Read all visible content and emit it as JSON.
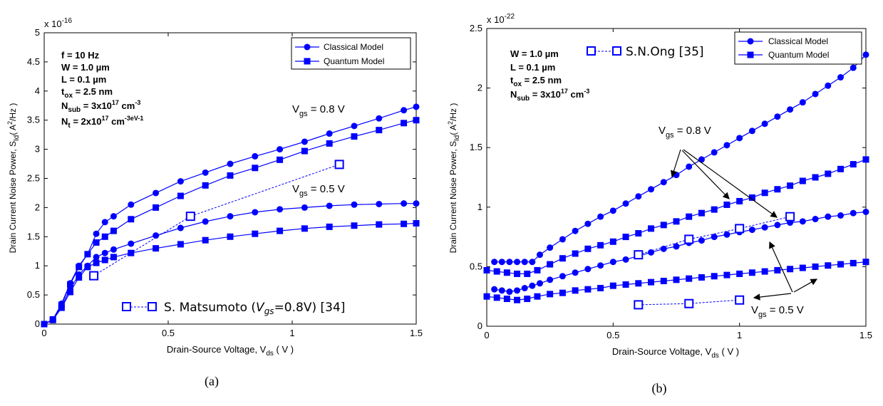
{
  "series_color": "#0000ff",
  "chart_data": [
    {
      "type": "line",
      "caption": "(a)",
      "xlabel": "Drain-Source Voltage, V",
      "xlabel_sub": "ds",
      "xlabel_unit": " ( V )",
      "ylabel": "Drain Current Noise Power, S",
      "ylabel_sub": "Id",
      "ylabel_unit": "( A",
      "ylabel_unit_sup": "2",
      "ylabel_unit_end": "/Hz )",
      "xlim": [
        0,
        1.5
      ],
      "ylim": [
        0,
        5
      ],
      "xticks": [
        "0",
        "0.5",
        "1",
        "1.5"
      ],
      "yticks": [
        "0",
        "0.5",
        "1",
        "1.5",
        "2",
        "2.5",
        "3",
        "3.5",
        "4",
        "4.5",
        "5"
      ],
      "multiplier": "x 10",
      "multiplier_exp": "-16",
      "legend": [
        "Classical Model",
        "Quantum Model"
      ],
      "params": [
        {
          "main": "f = 10 Hz",
          "sub": "",
          "rest": "",
          "sup": "",
          "tail": "",
          "sup2": "",
          "tail2": ""
        },
        {
          "main": "W = 1.0 µm",
          "sub": "",
          "rest": "",
          "sup": "",
          "tail": "",
          "sup2": "",
          "tail2": ""
        },
        {
          "main": "L  =  0.1 µm",
          "sub": "",
          "rest": "",
          "sup": "",
          "tail": "",
          "sup2": "",
          "tail2": ""
        },
        {
          "main": "t",
          "sub": "ox",
          "rest": " = 2.5 nm",
          "sup": "",
          "tail": "",
          "sup2": "",
          "tail2": ""
        },
        {
          "main": "N",
          "sub": "sub",
          "rest": " = 3x10",
          "sup": "17",
          "tail": " cm",
          "sup2": "-3",
          "tail2": ""
        },
        {
          "main": "N",
          "sub": "t",
          "rest": " = 2x10",
          "sup": "17",
          "tail": " cm",
          "sup2": "-3",
          "tail2": "eV-1"
        }
      ],
      "annotations": [
        {
          "main": "V",
          "sub": "gs",
          "rest": " = 0.8 V"
        },
        {
          "main": "V",
          "sub": "gs",
          "rest": " = 0.5 V"
        }
      ],
      "reference_label": "S. Matsumoto (",
      "reference_italic": "V",
      "reference_italic_sub": "gs",
      "reference_tail": "=0.8V) [34]",
      "series": [
        {
          "name": "Classical Model",
          "marker": "circle",
          "x": [
            0,
            0.035,
            0.07,
            0.105,
            0.14,
            0.175,
            0.21,
            0.245,
            0.28,
            0.35,
            0.45,
            0.55,
            0.65,
            0.75,
            0.85,
            0.95,
            1.05,
            1.15,
            1.25,
            1.35,
            1.45,
            1.5
          ],
          "y": [
            0,
            0.08,
            0.35,
            0.7,
            1.0,
            1.2,
            1.55,
            1.75,
            1.85,
            2.05,
            2.25,
            2.45,
            2.6,
            2.75,
            2.88,
            3.0,
            3.13,
            3.27,
            3.4,
            3.53,
            3.67,
            3.73
          ]
        },
        {
          "name": "Quantum Model",
          "marker": "square",
          "x": [
            0,
            0.035,
            0.07,
            0.105,
            0.14,
            0.175,
            0.21,
            0.245,
            0.28,
            0.35,
            0.45,
            0.55,
            0.65,
            0.75,
            0.85,
            0.95,
            1.05,
            1.15,
            1.25,
            1.35,
            1.45,
            1.5
          ],
          "y": [
            0,
            0.08,
            0.33,
            0.68,
            0.98,
            1.2,
            1.4,
            1.5,
            1.6,
            1.8,
            2.0,
            2.2,
            2.38,
            2.55,
            2.68,
            2.82,
            2.97,
            3.1,
            3.22,
            3.33,
            3.45,
            3.5
          ]
        },
        {
          "name": "Classical Model",
          "marker": "circle",
          "x": [
            0,
            0.035,
            0.07,
            0.105,
            0.14,
            0.175,
            0.21,
            0.245,
            0.28,
            0.35,
            0.45,
            0.55,
            0.65,
            0.75,
            0.85,
            0.95,
            1.05,
            1.15,
            1.25,
            1.35,
            1.45,
            1.5
          ],
          "y": [
            0,
            0.07,
            0.3,
            0.6,
            0.85,
            1.0,
            1.15,
            1.22,
            1.28,
            1.38,
            1.52,
            1.65,
            1.76,
            1.85,
            1.92,
            1.97,
            2.0,
            2.03,
            2.05,
            2.06,
            2.07,
            2.07
          ]
        },
        {
          "name": "Quantum Model",
          "marker": "square",
          "x": [
            0,
            0.035,
            0.07,
            0.105,
            0.14,
            0.175,
            0.21,
            0.245,
            0.28,
            0.35,
            0.45,
            0.55,
            0.65,
            0.75,
            0.85,
            0.95,
            1.05,
            1.15,
            1.25,
            1.35,
            1.45,
            1.5
          ],
          "y": [
            0,
            0.07,
            0.28,
            0.55,
            0.8,
            0.98,
            1.05,
            1.1,
            1.15,
            1.22,
            1.3,
            1.37,
            1.44,
            1.5,
            1.55,
            1.6,
            1.64,
            1.67,
            1.69,
            1.71,
            1.72,
            1.73
          ]
        },
        {
          "name": "S. Matsumoto (Vgs=0.8V) [34]",
          "marker": "open-square",
          "x": [
            0.2,
            0.59,
            1.19
          ],
          "y": [
            0.83,
            1.85,
            2.74
          ]
        }
      ]
    },
    {
      "type": "line",
      "caption": "(b)",
      "xlabel": "Drain-Source Voltage, V",
      "xlabel_sub": "ds",
      "xlabel_unit": " ( V )",
      "ylabel": "Drain Current Noise Power, S",
      "ylabel_sub": "Id",
      "ylabel_unit": "( A",
      "ylabel_unit_sup": "2",
      "ylabel_unit_end": "/Hz )",
      "xlim": [
        0,
        1.5
      ],
      "ylim": [
        0,
        2.5
      ],
      "xticks": [
        "0",
        "0.5",
        "1",
        "1.5"
      ],
      "yticks": [
        "0",
        "0.5",
        "1",
        "1.5",
        "2",
        "2.5"
      ],
      "multiplier": "x 10",
      "multiplier_exp": "-22",
      "legend": [
        "Classical Model",
        "Quantum Model"
      ],
      "params": [
        {
          "main": "W = 1.0 µm",
          "sub": "",
          "rest": "",
          "sup": "",
          "tail": "",
          "sup2": "",
          "tail2": ""
        },
        {
          "main": "L  =  0.1 µm",
          "sub": "",
          "rest": "",
          "sup": "",
          "tail": "",
          "sup2": "",
          "tail2": ""
        },
        {
          "main": "t",
          "sub": "ox",
          "rest": " = 2.5 nm",
          "sup": "",
          "tail": "",
          "sup2": "",
          "tail2": ""
        },
        {
          "main": "N",
          "sub": "sub",
          "rest": " = 3x10",
          "sup": "17",
          "tail": " cm",
          "sup2": "-3",
          "tail2": ""
        }
      ],
      "annotations": [
        {
          "main": "V",
          "sub": "gs",
          "rest": " = 0.8 V"
        },
        {
          "main": "V",
          "sub": "gs",
          "rest": " = 0.5 V"
        }
      ],
      "reference_label": "S.N.Ong  [35]",
      "series": [
        {
          "name": "Classical Model",
          "marker": "circle",
          "x": [
            0.03,
            0.06,
            0.09,
            0.12,
            0.15,
            0.18,
            0.21,
            0.25,
            0.3,
            0.35,
            0.4,
            0.45,
            0.5,
            0.55,
            0.6,
            0.65,
            0.7,
            0.75,
            0.8,
            0.85,
            0.9,
            0.95,
            1.0,
            1.05,
            1.1,
            1.15,
            1.2,
            1.25,
            1.3,
            1.35,
            1.4,
            1.45,
            1.5
          ],
          "y": [
            0.54,
            0.54,
            0.54,
            0.54,
            0.54,
            0.54,
            0.6,
            0.66,
            0.73,
            0.8,
            0.86,
            0.92,
            0.97,
            1.03,
            1.09,
            1.15,
            1.21,
            1.27,
            1.34,
            1.4,
            1.46,
            1.52,
            1.58,
            1.64,
            1.7,
            1.76,
            1.82,
            1.88,
            1.95,
            2.02,
            2.09,
            2.17,
            2.28
          ]
        },
        {
          "name": "Quantum Model",
          "marker": "square",
          "x": [
            0,
            0.04,
            0.08,
            0.12,
            0.16,
            0.2,
            0.25,
            0.3,
            0.35,
            0.4,
            0.45,
            0.5,
            0.55,
            0.6,
            0.65,
            0.7,
            0.75,
            0.8,
            0.85,
            0.9,
            0.95,
            1.0,
            1.05,
            1.1,
            1.15,
            1.2,
            1.25,
            1.3,
            1.35,
            1.4,
            1.45,
            1.5
          ],
          "y": [
            0.47,
            0.46,
            0.45,
            0.44,
            0.44,
            0.47,
            0.52,
            0.57,
            0.61,
            0.65,
            0.68,
            0.71,
            0.75,
            0.78,
            0.82,
            0.85,
            0.88,
            0.92,
            0.95,
            0.98,
            1.02,
            1.05,
            1.08,
            1.12,
            1.15,
            1.18,
            1.22,
            1.25,
            1.28,
            1.32,
            1.36,
            1.4
          ]
        },
        {
          "name": "Classical Model",
          "marker": "circle",
          "x": [
            0.03,
            0.06,
            0.09,
            0.12,
            0.15,
            0.18,
            0.21,
            0.25,
            0.3,
            0.35,
            0.4,
            0.45,
            0.5,
            0.55,
            0.6,
            0.65,
            0.7,
            0.75,
            0.8,
            0.85,
            0.9,
            0.95,
            1.0,
            1.05,
            1.1,
            1.15,
            1.2,
            1.25,
            1.3,
            1.35,
            1.4,
            1.45,
            1.5
          ],
          "y": [
            0.31,
            0.3,
            0.29,
            0.3,
            0.32,
            0.34,
            0.36,
            0.39,
            0.42,
            0.45,
            0.48,
            0.51,
            0.54,
            0.56,
            0.59,
            0.62,
            0.65,
            0.67,
            0.7,
            0.72,
            0.75,
            0.77,
            0.79,
            0.81,
            0.83,
            0.85,
            0.87,
            0.88,
            0.9,
            0.92,
            0.93,
            0.95,
            0.96
          ]
        },
        {
          "name": "Quantum Model",
          "marker": "square",
          "x": [
            0,
            0.04,
            0.08,
            0.12,
            0.16,
            0.2,
            0.25,
            0.3,
            0.35,
            0.4,
            0.45,
            0.5,
            0.55,
            0.6,
            0.65,
            0.7,
            0.75,
            0.8,
            0.85,
            0.9,
            0.95,
            1.0,
            1.05,
            1.1,
            1.15,
            1.2,
            1.25,
            1.3,
            1.35,
            1.4,
            1.45,
            1.5
          ],
          "y": [
            0.25,
            0.24,
            0.23,
            0.22,
            0.23,
            0.25,
            0.27,
            0.28,
            0.3,
            0.31,
            0.32,
            0.34,
            0.35,
            0.36,
            0.37,
            0.38,
            0.39,
            0.4,
            0.41,
            0.42,
            0.43,
            0.44,
            0.45,
            0.46,
            0.47,
            0.48,
            0.49,
            0.5,
            0.51,
            0.52,
            0.53,
            0.54
          ]
        },
        {
          "name": "S.N.Ong  [35]",
          "marker": "open-square",
          "x": [
            0.6,
            0.8,
            1.0,
            1.2
          ],
          "y": [
            0.6,
            0.73,
            0.82,
            0.92
          ]
        },
        {
          "name": "S.N.Ong  [35]",
          "marker": "open-square",
          "x": [
            0.6,
            0.8,
            1.0
          ],
          "y": [
            0.18,
            0.19,
            0.22
          ]
        }
      ]
    }
  ]
}
